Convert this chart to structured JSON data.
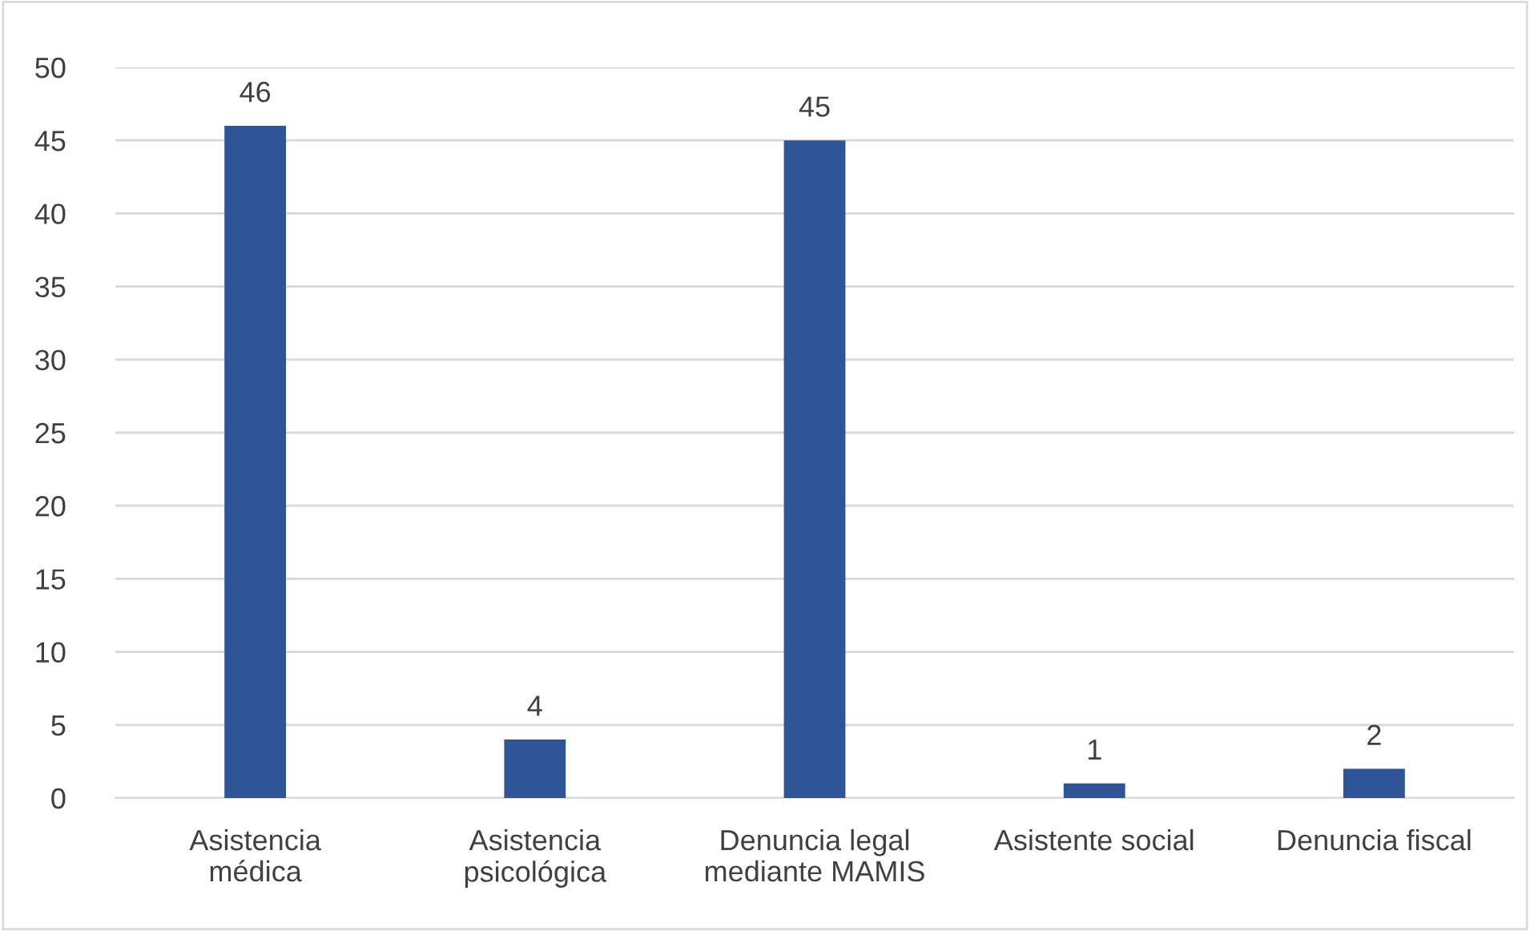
{
  "chart_data": {
    "type": "bar",
    "categories": [
      "Asistencia\nmédica",
      "Asistencia\npsicológica",
      "Denuncia legal\nmediante MAMIS",
      "Asistente social",
      "Denuncia fiscal"
    ],
    "values": [
      46,
      4,
      45,
      1,
      2
    ],
    "color": "#2f5597",
    "ylim": [
      0,
      50
    ],
    "yticks": [
      0,
      5,
      10,
      15,
      20,
      25,
      30,
      35,
      40,
      45,
      50
    ],
    "grid": "y",
    "data_labels": true
  }
}
